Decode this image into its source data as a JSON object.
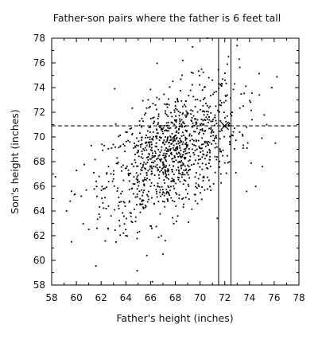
{
  "chart_data": {
    "type": "scatter",
    "title": "Father-son pairs where the father is 6 feet tall",
    "xlabel": "Father's height (inches)",
    "ylabel": "Son's height (inches)",
    "xlim": [
      58,
      78
    ],
    "ylim": [
      58,
      78
    ],
    "x_ticks": [
      58,
      60,
      62,
      64,
      66,
      68,
      70,
      72,
      74,
      76,
      78
    ],
    "y_ticks": [
      58,
      60,
      62,
      64,
      66,
      68,
      70,
      72,
      74,
      76,
      78
    ],
    "x_tick_labels": [
      "58",
      "60",
      "62",
      "64",
      "66",
      "68",
      "70",
      "72",
      "74",
      "76",
      "78"
    ],
    "y_tick_labels": [
      "58",
      "60",
      "62",
      "64",
      "66",
      "68",
      "70",
      "72",
      "74",
      "76",
      "78"
    ],
    "grid": false,
    "legend": "none",
    "point_color": "#000000",
    "vertical_band": [
      71.5,
      72.5
    ],
    "horizontal_dashed_line_y": 70.9,
    "highlight_cross": {
      "x": 72,
      "y": 70.9
    },
    "series": [
      {
        "points": [
          [
            59.2,
            64.0
          ],
          [
            59.6,
            61.5
          ],
          [
            59.5,
            64.8
          ],
          [
            60.4,
            65.2
          ],
          [
            60.8,
            65.7
          ],
          [
            61.2,
            69.3
          ],
          [
            61.4,
            67.1
          ],
          [
            61.6,
            66.4
          ],
          [
            61.9,
            63.5
          ],
          [
            62.2,
            65.8
          ],
          [
            62.4,
            64.2
          ],
          [
            62.6,
            67.6
          ],
          [
            62.8,
            63.6
          ],
          [
            63.0,
            66.6
          ],
          [
            63.1,
            73.9
          ],
          [
            63.3,
            68.3
          ],
          [
            63.5,
            62.8
          ],
          [
            63.6,
            65.4
          ],
          [
            63.8,
            69.4
          ],
          [
            64.0,
            62.0
          ],
          [
            64.2,
            67.0
          ],
          [
            64.3,
            64.8
          ],
          [
            64.5,
            70.2
          ],
          [
            64.6,
            66.2
          ],
          [
            64.8,
            63.5
          ],
          [
            65.0,
            68.8
          ],
          [
            65.1,
            65.6
          ],
          [
            65.3,
            71.5
          ],
          [
            65.4,
            64.3
          ],
          [
            65.6,
            67.4
          ],
          [
            65.7,
            60.4
          ],
          [
            65.9,
            69.2
          ],
          [
            66.0,
            66.0
          ],
          [
            66.2,
            72.7
          ],
          [
            66.3,
            64.6
          ],
          [
            66.5,
            68.2
          ],
          [
            66.6,
            70.3
          ],
          [
            66.8,
            65.2
          ],
          [
            67.0,
            60.5
          ],
          [
            67.1,
            67.6
          ],
          [
            67.3,
            71.8
          ],
          [
            67.4,
            64.8
          ],
          [
            67.6,
            69.0
          ],
          [
            67.8,
            74.5
          ],
          [
            67.9,
            66.4
          ],
          [
            68.1,
            70.8
          ],
          [
            68.2,
            63.6
          ],
          [
            68.4,
            68.6
          ],
          [
            68.6,
            76.2
          ],
          [
            68.7,
            67.3
          ],
          [
            68.9,
            72.1
          ],
          [
            69.0,
            65.4
          ],
          [
            69.2,
            69.7
          ],
          [
            69.4,
            77.3
          ],
          [
            69.5,
            67.8
          ],
          [
            69.7,
            71.2
          ],
          [
            69.8,
            64.6
          ],
          [
            70.0,
            69.1
          ],
          [
            70.2,
            73.8
          ],
          [
            70.3,
            66.8
          ],
          [
            70.5,
            71.6
          ],
          [
            70.6,
            78.0
          ],
          [
            70.8,
            68.4
          ],
          [
            71.0,
            74.6
          ],
          [
            71.1,
            66.2
          ],
          [
            71.3,
            70.1
          ],
          [
            71.4,
            63.4
          ],
          [
            71.6,
            72.6
          ],
          [
            71.7,
            68.8
          ],
          [
            71.9,
            70.9
          ],
          [
            72.0,
            67.9
          ],
          [
            72.1,
            73.3
          ],
          [
            72.3,
            76.5
          ],
          [
            72.4,
            69.6
          ],
          [
            72.6,
            72.0
          ],
          [
            72.8,
            74.3
          ],
          [
            72.9,
            67.1
          ],
          [
            73.0,
            77.4
          ],
          [
            73.2,
            70.4
          ],
          [
            73.5,
            72.5
          ],
          [
            73.8,
            69.1
          ],
          [
            74.2,
            71.4
          ],
          [
            74.5,
            66.0
          ],
          [
            74.8,
            73.4
          ],
          [
            75.0,
            69.9
          ],
          [
            75.4,
            71.0
          ],
          [
            75.8,
            74.0
          ],
          [
            76.1,
            69.5
          ]
        ]
      }
    ]
  }
}
